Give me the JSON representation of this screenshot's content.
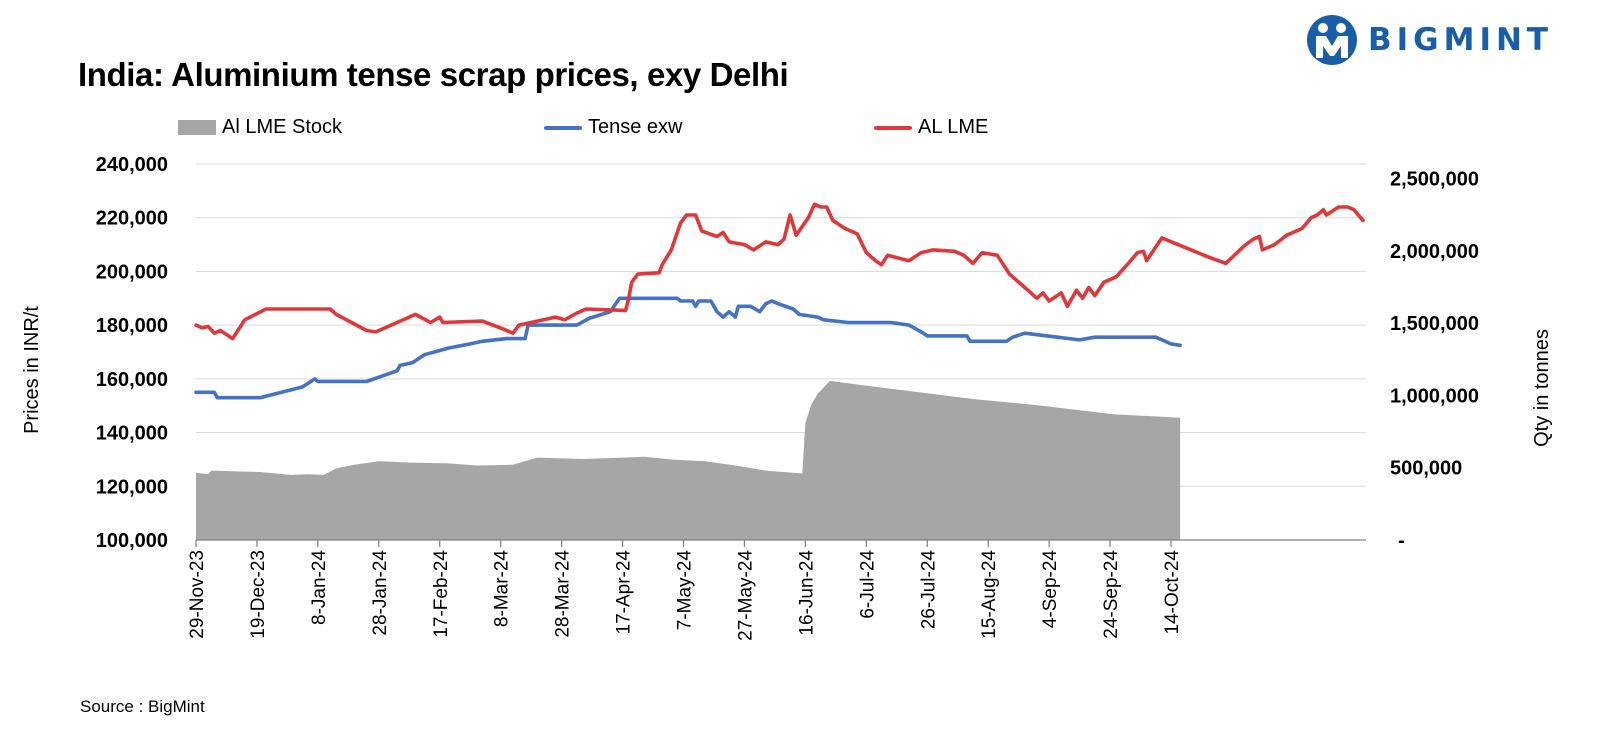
{
  "header": {
    "title": "India: Aluminium tense scrap prices, exy Delhi",
    "brand": "BIGMINT"
  },
  "footer": {
    "source": "Source : BigMint"
  },
  "colors": {
    "stock": "#a6a6a6",
    "tense": "#4472c4",
    "lme": "#e0383a",
    "brand": "#1b5ea8",
    "grid": "#d9d9d9"
  },
  "chart_data": {
    "type": "line",
    "title": "India: Aluminium tense scrap prices, exy Delhi",
    "ylabel": "Prices in INR/t",
    "y2label": "Qty in tonnes",
    "ylim": [
      100000,
      240000
    ],
    "y2lim": [
      0,
      2600000
    ],
    "yticks": [
      "100,000",
      "120,000",
      "140,000",
      "160,000",
      "180,000",
      "200,000",
      "220,000",
      "240,000"
    ],
    "y2ticks": [
      "-",
      "500,000",
      "1,000,000",
      "1,500,000",
      "2,000,000",
      "2,500,000"
    ],
    "xticks": [
      "29-Nov-23",
      "19-Dec-23",
      "8-Jan-24",
      "28-Jan-24",
      "17-Feb-24",
      "8-Mar-24",
      "28-Mar-24",
      "17-Apr-24",
      "7-May-24",
      "27-May-24",
      "16-Jun-24",
      "6-Jul-24",
      "26-Jul-24",
      "15-Aug-24",
      "4-Sep-24",
      "24-Sep-24",
      "14-Oct-24"
    ],
    "grid": true,
    "legend_position": "top",
    "series": [
      {
        "name": "Al LME Stock",
        "kind": "area",
        "axis": "right",
        "points": [
          [
            "2023-11-29",
            465000
          ],
          [
            "2023-12-03",
            455000
          ],
          [
            "2023-12-04",
            480000
          ],
          [
            "2023-12-20",
            470000
          ],
          [
            "2023-12-30",
            450000
          ],
          [
            "2024-01-05",
            455000
          ],
          [
            "2024-01-10",
            450000
          ],
          [
            "2024-01-14",
            495000
          ],
          [
            "2024-01-20",
            520000
          ],
          [
            "2024-01-28",
            545000
          ],
          [
            "2024-02-07",
            535000
          ],
          [
            "2024-02-20",
            530000
          ],
          [
            "2024-02-29",
            515000
          ],
          [
            "2024-03-12",
            520000
          ],
          [
            "2024-03-20",
            570000
          ],
          [
            "2024-04-04",
            560000
          ],
          [
            "2024-04-24",
            575000
          ],
          [
            "2024-05-04",
            555000
          ],
          [
            "2024-05-14",
            545000
          ],
          [
            "2024-05-24",
            515000
          ],
          [
            "2024-06-03",
            480000
          ],
          [
            "2024-06-15",
            460000
          ],
          [
            "2024-06-16",
            810000
          ],
          [
            "2024-06-18",
            940000
          ],
          [
            "2024-06-20",
            1010000
          ],
          [
            "2024-06-24",
            1100000
          ],
          [
            "2024-07-05",
            1070000
          ],
          [
            "2024-07-20",
            1030000
          ],
          [
            "2024-08-10",
            975000
          ],
          [
            "2024-09-01",
            930000
          ],
          [
            "2024-09-25",
            870000
          ],
          [
            "2024-10-17",
            845000
          ]
        ]
      },
      {
        "name": "Tense exw",
        "kind": "line",
        "axis": "left",
        "points": [
          [
            "2023-11-29",
            155000
          ],
          [
            "2023-12-05",
            155000
          ],
          [
            "2023-12-06",
            153000
          ],
          [
            "2023-12-20",
            153000
          ],
          [
            "2024-01-03",
            157000
          ],
          [
            "2024-01-07",
            160000
          ],
          [
            "2024-01-08",
            159000
          ],
          [
            "2024-01-24",
            159000
          ],
          [
            "2024-02-03",
            163000
          ],
          [
            "2024-02-04",
            165000
          ],
          [
            "2024-02-08",
            166000
          ],
          [
            "2024-02-12",
            169000
          ],
          [
            "2024-02-20",
            171500
          ],
          [
            "2024-02-27",
            173000
          ],
          [
            "2024-03-02",
            174000
          ],
          [
            "2024-03-10",
            175000
          ],
          [
            "2024-03-16",
            175000
          ],
          [
            "2024-03-17",
            180000
          ],
          [
            "2024-04-02",
            180000
          ],
          [
            "2024-04-06",
            182500
          ],
          [
            "2024-04-13",
            185000
          ],
          [
            "2024-04-16",
            190000
          ],
          [
            "2024-05-05",
            190000
          ],
          [
            "2024-05-06",
            189000
          ],
          [
            "2024-05-10",
            189000
          ],
          [
            "2024-05-11",
            187000
          ],
          [
            "2024-05-12",
            189000
          ],
          [
            "2024-05-16",
            189000
          ],
          [
            "2024-05-18",
            185000
          ],
          [
            "2024-05-20",
            183000
          ],
          [
            "2024-05-22",
            185000
          ],
          [
            "2024-05-24",
            183000
          ],
          [
            "2024-05-25",
            187000
          ],
          [
            "2024-05-29",
            187000
          ],
          [
            "2024-06-01",
            185000
          ],
          [
            "2024-06-03",
            188000
          ],
          [
            "2024-06-05",
            189000
          ],
          [
            "2024-06-07",
            188000
          ],
          [
            "2024-06-12",
            186000
          ],
          [
            "2024-06-14",
            184000
          ],
          [
            "2024-06-20",
            183000
          ],
          [
            "2024-06-22",
            182000
          ],
          [
            "2024-06-30",
            181000
          ],
          [
            "2024-07-14",
            181000
          ],
          [
            "2024-07-20",
            180000
          ],
          [
            "2024-07-24",
            177500
          ],
          [
            "2024-07-26",
            176000
          ],
          [
            "2024-08-08",
            176000
          ],
          [
            "2024-08-09",
            174000
          ],
          [
            "2024-08-21",
            174000
          ],
          [
            "2024-08-23",
            175500
          ],
          [
            "2024-08-27",
            177000
          ],
          [
            "2024-09-14",
            174500
          ],
          [
            "2024-09-19",
            175500
          ],
          [
            "2024-10-09",
            175500
          ],
          [
            "2024-10-14",
            173000
          ],
          [
            "2024-10-17",
            172500
          ]
        ]
      },
      {
        "name": "AL LME",
        "kind": "line",
        "axis": "left",
        "points": [
          [
            "2023-11-29",
            180000
          ],
          [
            "2023-12-01",
            179000
          ],
          [
            "2023-12-03",
            179500
          ],
          [
            "2023-12-05",
            177000
          ],
          [
            "2023-12-07",
            178000
          ],
          [
            "2023-12-11",
            175000
          ],
          [
            "2023-12-15",
            182000
          ],
          [
            "2023-12-22",
            186000
          ],
          [
            "2024-01-12",
            186000
          ],
          [
            "2024-01-14",
            184000
          ],
          [
            "2024-01-24",
            178000
          ],
          [
            "2024-01-27",
            177500
          ],
          [
            "2024-02-09",
            184000
          ],
          [
            "2024-02-14",
            181000
          ],
          [
            "2024-02-17",
            183000
          ],
          [
            "2024-02-18",
            181000
          ],
          [
            "2024-03-02",
            181500
          ],
          [
            "2024-03-09",
            178500
          ],
          [
            "2024-03-12",
            177000
          ],
          [
            "2024-03-14",
            180000
          ],
          [
            "2024-03-26",
            183000
          ],
          [
            "2024-03-29",
            182000
          ],
          [
            "2024-04-02",
            184500
          ],
          [
            "2024-04-05",
            186000
          ],
          [
            "2024-04-18",
            185500
          ],
          [
            "2024-04-19",
            190000
          ],
          [
            "2024-04-20",
            196000
          ],
          [
            "2024-04-22",
            199000
          ],
          [
            "2024-04-29",
            199500
          ],
          [
            "2024-04-30",
            202500
          ],
          [
            "2024-05-03",
            208000
          ],
          [
            "2024-05-06",
            218000
          ],
          [
            "2024-05-08",
            221000
          ],
          [
            "2024-05-11",
            221000
          ],
          [
            "2024-05-13",
            215000
          ],
          [
            "2024-05-18",
            213000
          ],
          [
            "2024-05-20",
            214500
          ],
          [
            "2024-05-22",
            211000
          ],
          [
            "2024-05-27",
            210000
          ],
          [
            "2024-05-30",
            208000
          ],
          [
            "2024-06-03",
            211000
          ],
          [
            "2024-06-07",
            210000
          ],
          [
            "2024-06-09",
            212000
          ],
          [
            "2024-06-11",
            221000
          ],
          [
            "2024-06-13",
            213500
          ],
          [
            "2024-06-17",
            220000
          ],
          [
            "2024-06-19",
            225000
          ],
          [
            "2024-06-21",
            224000
          ],
          [
            "2024-06-23",
            224000
          ],
          [
            "2024-06-25",
            219000
          ],
          [
            "2024-06-29",
            216000
          ],
          [
            "2024-07-03",
            214000
          ],
          [
            "2024-07-06",
            207000
          ],
          [
            "2024-07-09",
            204000
          ],
          [
            "2024-07-11",
            202500
          ],
          [
            "2024-07-13",
            206000
          ],
          [
            "2024-07-20",
            204000
          ],
          [
            "2024-07-24",
            207000
          ],
          [
            "2024-07-28",
            208000
          ],
          [
            "2024-08-04",
            207500
          ],
          [
            "2024-08-07",
            206000
          ],
          [
            "2024-08-10",
            203000
          ],
          [
            "2024-08-13",
            207000
          ],
          [
            "2024-08-18",
            206000
          ],
          [
            "2024-08-22",
            199000
          ],
          [
            "2024-08-28",
            193000
          ],
          [
            "2024-08-31",
            190000
          ],
          [
            "2024-09-02",
            192000
          ],
          [
            "2024-09-04",
            189000
          ],
          [
            "2024-09-08",
            192000
          ],
          [
            "2024-09-10",
            187000
          ],
          [
            "2024-09-13",
            193000
          ],
          [
            "2024-09-15",
            190000
          ],
          [
            "2024-09-17",
            194000
          ],
          [
            "2024-09-19",
            191000
          ],
          [
            "2024-09-22",
            196000
          ],
          [
            "2024-09-26",
            198000
          ],
          [
            "2024-09-30",
            203000
          ],
          [
            "2024-10-03",
            207000
          ],
          [
            "2024-10-05",
            207500
          ],
          [
            "2024-10-06",
            204000
          ],
          [
            "2024-10-11",
            212500
          ],
          [
            "2024-10-26",
            205500
          ],
          [
            "2024-11-01",
            203000
          ],
          [
            "2024-11-07",
            209500
          ],
          [
            "2024-11-10",
            212000
          ],
          [
            "2024-11-12",
            213000
          ],
          [
            "2024-11-13",
            208000
          ],
          [
            "2024-11-17",
            210000
          ],
          [
            "2024-11-21",
            213500
          ],
          [
            "2024-11-26",
            216000
          ],
          [
            "2024-11-29",
            220000
          ],
          [
            "2024-12-01",
            221000
          ],
          [
            "2024-12-03",
            223000
          ],
          [
            "2024-12-04",
            221000
          ],
          [
            "2024-12-06",
            222500
          ],
          [
            "2024-12-08",
            224000
          ],
          [
            "2024-12-11",
            224000
          ],
          [
            "2024-12-13",
            223000
          ],
          [
            "2024-12-16",
            219000
          ]
        ]
      }
    ]
  }
}
